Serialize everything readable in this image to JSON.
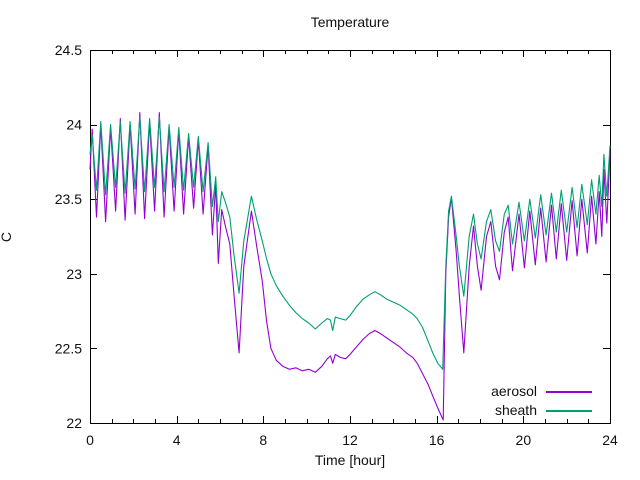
{
  "window": {
    "background": "#ffffff",
    "text_color": "#111111",
    "axis_color": "#000000"
  },
  "chart": {
    "title": "Temperature",
    "x_axis": {
      "label": "Time [hour]",
      "tick_labels": [
        "0",
        "4",
        "8",
        "12",
        "16",
        "20",
        "24"
      ]
    },
    "y_axis": {
      "label": "C",
      "tick_labels": [
        "22",
        "22.5",
        "23",
        "23.5",
        "24",
        "24.5"
      ]
    },
    "legend": {
      "position": "inside-bottom-right",
      "items": [
        {
          "label": "aerosol",
          "color": "#9400d3"
        },
        {
          "label": "sheath",
          "color": "#009e73"
        }
      ]
    }
  },
  "chart_data": {
    "type": "line",
    "title": "Temperature",
    "xlabel": "Time [hour]",
    "ylabel": "C",
    "xlim": [
      0,
      24
    ],
    "ylim": [
      22,
      24.5
    ],
    "x_major_ticks": [
      0,
      4,
      8,
      12,
      16,
      20,
      24
    ],
    "x_minor_tick_interval": 1,
    "y_major_ticks": [
      22,
      22.5,
      23,
      23.5,
      24,
      24.5
    ],
    "grid": false,
    "tick_style": "inward-mirrored",
    "legend_position": "inside bottom-right",
    "series": [
      {
        "name": "aerosol",
        "color": "#9400d3",
        "points": [
          [
            0.0,
            23.7
          ],
          [
            0.1,
            23.97
          ],
          [
            0.3,
            23.38
          ],
          [
            0.5,
            24.0
          ],
          [
            0.72,
            23.35
          ],
          [
            0.95,
            23.98
          ],
          [
            1.18,
            23.42
          ],
          [
            1.4,
            24.04
          ],
          [
            1.62,
            23.36
          ],
          [
            1.85,
            24.0
          ],
          [
            2.08,
            23.4
          ],
          [
            2.3,
            24.08
          ],
          [
            2.52,
            23.37
          ],
          [
            2.75,
            24.02
          ],
          [
            2.98,
            23.42
          ],
          [
            3.2,
            24.08
          ],
          [
            3.42,
            23.38
          ],
          [
            3.65,
            23.98
          ],
          [
            3.88,
            23.42
          ],
          [
            4.1,
            23.96
          ],
          [
            4.32,
            23.4
          ],
          [
            4.55,
            23.92
          ],
          [
            4.78,
            23.44
          ],
          [
            5.0,
            23.9
          ],
          [
            5.22,
            23.4
          ],
          [
            5.45,
            23.86
          ],
          [
            5.65,
            23.26
          ],
          [
            5.8,
            23.6
          ],
          [
            5.92,
            23.07
          ],
          [
            6.08,
            23.43
          ],
          [
            6.25,
            23.32
          ],
          [
            6.45,
            23.2
          ],
          [
            6.65,
            22.85
          ],
          [
            6.88,
            22.47
          ],
          [
            7.1,
            23.05
          ],
          [
            7.45,
            23.42
          ],
          [
            7.7,
            23.18
          ],
          [
            7.95,
            22.95
          ],
          [
            8.15,
            22.68
          ],
          [
            8.35,
            22.5
          ],
          [
            8.6,
            22.42
          ],
          [
            8.9,
            22.38
          ],
          [
            9.2,
            22.36
          ],
          [
            9.5,
            22.37
          ],
          [
            9.8,
            22.35
          ],
          [
            10.1,
            22.36
          ],
          [
            10.4,
            22.34
          ],
          [
            10.7,
            22.38
          ],
          [
            10.95,
            22.43
          ],
          [
            11.1,
            22.45
          ],
          [
            11.2,
            22.4
          ],
          [
            11.32,
            22.46
          ],
          [
            11.55,
            22.44
          ],
          [
            11.8,
            22.43
          ],
          [
            12.0,
            22.46
          ],
          [
            12.3,
            22.51
          ],
          [
            12.6,
            22.56
          ],
          [
            12.9,
            22.6
          ],
          [
            13.15,
            22.62
          ],
          [
            13.4,
            22.6
          ],
          [
            13.7,
            22.57
          ],
          [
            14.0,
            22.54
          ],
          [
            14.3,
            22.51
          ],
          [
            14.6,
            22.47
          ],
          [
            14.9,
            22.44
          ],
          [
            15.1,
            22.4
          ],
          [
            15.35,
            22.33
          ],
          [
            15.6,
            22.26
          ],
          [
            15.85,
            22.17
          ],
          [
            16.05,
            22.1
          ],
          [
            16.3,
            22.02
          ],
          [
            16.42,
            23.0
          ],
          [
            16.55,
            23.38
          ],
          [
            16.68,
            23.51
          ],
          [
            16.9,
            23.15
          ],
          [
            17.05,
            22.85
          ],
          [
            17.25,
            22.47
          ],
          [
            17.5,
            23.05
          ],
          [
            17.7,
            23.32
          ],
          [
            17.88,
            23.05
          ],
          [
            18.05,
            22.89
          ],
          [
            18.3,
            23.25
          ],
          [
            18.5,
            23.35
          ],
          [
            18.72,
            23.05
          ],
          [
            18.9,
            22.96
          ],
          [
            19.12,
            23.28
          ],
          [
            19.3,
            23.38
          ],
          [
            19.5,
            23.02
          ],
          [
            19.8,
            23.4
          ],
          [
            20.05,
            23.04
          ],
          [
            20.3,
            23.42
          ],
          [
            20.55,
            23.06
          ],
          [
            20.8,
            23.44
          ],
          [
            21.05,
            23.08
          ],
          [
            21.3,
            23.46
          ],
          [
            21.52,
            23.1
          ],
          [
            21.75,
            23.47
          ],
          [
            22.0,
            23.09
          ],
          [
            22.25,
            23.49
          ],
          [
            22.48,
            23.12
          ],
          [
            22.7,
            23.5
          ],
          [
            22.95,
            23.14
          ],
          [
            23.15,
            23.52
          ],
          [
            23.35,
            23.2
          ],
          [
            23.5,
            23.55
          ],
          [
            23.62,
            23.25
          ],
          [
            23.72,
            23.7
          ],
          [
            23.85,
            23.34
          ],
          [
            24.0,
            23.81
          ]
        ]
      },
      {
        "name": "sheath",
        "color": "#009e73",
        "points": [
          [
            0.0,
            23.8
          ],
          [
            0.1,
            23.93
          ],
          [
            0.3,
            23.56
          ],
          [
            0.5,
            24.02
          ],
          [
            0.72,
            23.53
          ],
          [
            0.95,
            24.0
          ],
          [
            1.18,
            23.58
          ],
          [
            1.4,
            24.02
          ],
          [
            1.62,
            23.54
          ],
          [
            1.85,
            24.02
          ],
          [
            2.08,
            23.57
          ],
          [
            2.3,
            24.05
          ],
          [
            2.52,
            23.55
          ],
          [
            2.75,
            24.04
          ],
          [
            2.98,
            23.58
          ],
          [
            3.2,
            24.05
          ],
          [
            3.42,
            23.55
          ],
          [
            3.65,
            24.0
          ],
          [
            3.88,
            23.58
          ],
          [
            4.1,
            23.98
          ],
          [
            4.32,
            23.56
          ],
          [
            4.55,
            23.94
          ],
          [
            4.78,
            23.58
          ],
          [
            5.0,
            23.92
          ],
          [
            5.22,
            23.55
          ],
          [
            5.45,
            23.88
          ],
          [
            5.65,
            23.45
          ],
          [
            5.8,
            23.65
          ],
          [
            5.92,
            23.35
          ],
          [
            6.08,
            23.55
          ],
          [
            6.25,
            23.48
          ],
          [
            6.45,
            23.38
          ],
          [
            6.65,
            23.12
          ],
          [
            6.88,
            22.87
          ],
          [
            7.1,
            23.22
          ],
          [
            7.45,
            23.52
          ],
          [
            7.7,
            23.36
          ],
          [
            7.95,
            23.22
          ],
          [
            8.15,
            23.1
          ],
          [
            8.35,
            23.0
          ],
          [
            8.6,
            22.92
          ],
          [
            8.9,
            22.85
          ],
          [
            9.2,
            22.79
          ],
          [
            9.5,
            22.74
          ],
          [
            9.8,
            22.7
          ],
          [
            10.1,
            22.67
          ],
          [
            10.4,
            22.63
          ],
          [
            10.7,
            22.67
          ],
          [
            10.95,
            22.7
          ],
          [
            11.1,
            22.69
          ],
          [
            11.2,
            22.62
          ],
          [
            11.32,
            22.71
          ],
          [
            11.55,
            22.7
          ],
          [
            11.8,
            22.69
          ],
          [
            12.0,
            22.72
          ],
          [
            12.3,
            22.78
          ],
          [
            12.6,
            22.83
          ],
          [
            12.9,
            22.86
          ],
          [
            13.15,
            22.88
          ],
          [
            13.4,
            22.86
          ],
          [
            13.7,
            22.83
          ],
          [
            14.0,
            22.81
          ],
          [
            14.3,
            22.79
          ],
          [
            14.6,
            22.76
          ],
          [
            14.9,
            22.73
          ],
          [
            15.1,
            22.7
          ],
          [
            15.35,
            22.64
          ],
          [
            15.6,
            22.55
          ],
          [
            15.85,
            22.46
          ],
          [
            16.05,
            22.4
          ],
          [
            16.28,
            22.36
          ],
          [
            16.42,
            23.05
          ],
          [
            16.55,
            23.42
          ],
          [
            16.68,
            23.52
          ],
          [
            16.9,
            23.25
          ],
          [
            17.05,
            23.05
          ],
          [
            17.25,
            22.85
          ],
          [
            17.5,
            23.25
          ],
          [
            17.7,
            23.4
          ],
          [
            17.88,
            23.2
          ],
          [
            18.05,
            23.1
          ],
          [
            18.3,
            23.35
          ],
          [
            18.5,
            23.43
          ],
          [
            18.72,
            23.22
          ],
          [
            18.9,
            23.15
          ],
          [
            19.12,
            23.4
          ],
          [
            19.3,
            23.46
          ],
          [
            19.5,
            23.2
          ],
          [
            19.8,
            23.48
          ],
          [
            20.05,
            23.22
          ],
          [
            20.3,
            23.5
          ],
          [
            20.55,
            23.24
          ],
          [
            20.8,
            23.53
          ],
          [
            21.05,
            23.26
          ],
          [
            21.3,
            23.54
          ],
          [
            21.52,
            23.28
          ],
          [
            21.75,
            23.56
          ],
          [
            22.0,
            23.28
          ],
          [
            22.25,
            23.58
          ],
          [
            22.48,
            23.31
          ],
          [
            22.7,
            23.6
          ],
          [
            22.95,
            23.33
          ],
          [
            23.15,
            23.63
          ],
          [
            23.35,
            23.4
          ],
          [
            23.5,
            23.66
          ],
          [
            23.62,
            23.45
          ],
          [
            23.72,
            23.8
          ],
          [
            23.85,
            23.52
          ],
          [
            24.0,
            23.86
          ]
        ]
      }
    ]
  }
}
